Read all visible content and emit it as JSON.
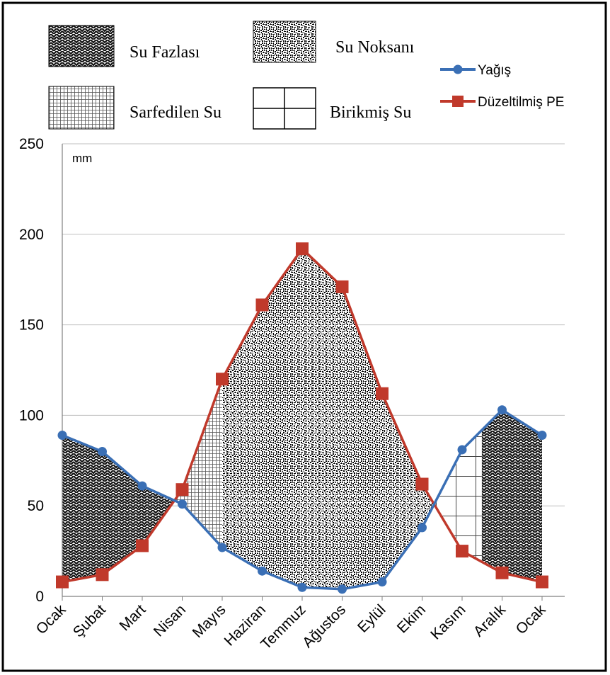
{
  "chart_data": {
    "type": "line",
    "title": "",
    "unit_label": "mm",
    "xlabel": "",
    "ylabel": "",
    "categories": [
      "Ocak",
      "Şubat",
      "Mart",
      "Nisan",
      "Mayıs",
      "Haziran",
      "Temmuz",
      "Ağustos",
      "Eylül",
      "Ekim",
      "Kasım",
      "Aralık",
      "Ocak"
    ],
    "y_ticks": [
      0,
      50,
      100,
      150,
      200,
      250
    ],
    "ylim": [
      0,
      250
    ],
    "grid": "horizontal",
    "series": [
      {
        "name": "Yağış",
        "color": "#3a6fb5",
        "marker": "circle",
        "values": [
          89,
          80,
          61,
          51,
          27,
          14,
          5,
          4,
          8,
          38,
          81,
          103,
          89
        ]
      },
      {
        "name": "Düzeltilmiş PE",
        "color": "#c0392b",
        "marker": "square",
        "values": [
          8,
          12,
          28,
          59,
          120,
          161,
          192,
          171,
          112,
          62,
          25,
          13,
          8
        ]
      }
    ],
    "water_balance_legend": {
      "surplus": "Su Fazlası",
      "deficit": "Su Noksanı",
      "used": "Sarfedilen Su",
      "stored": "Birikmiş Su"
    }
  }
}
